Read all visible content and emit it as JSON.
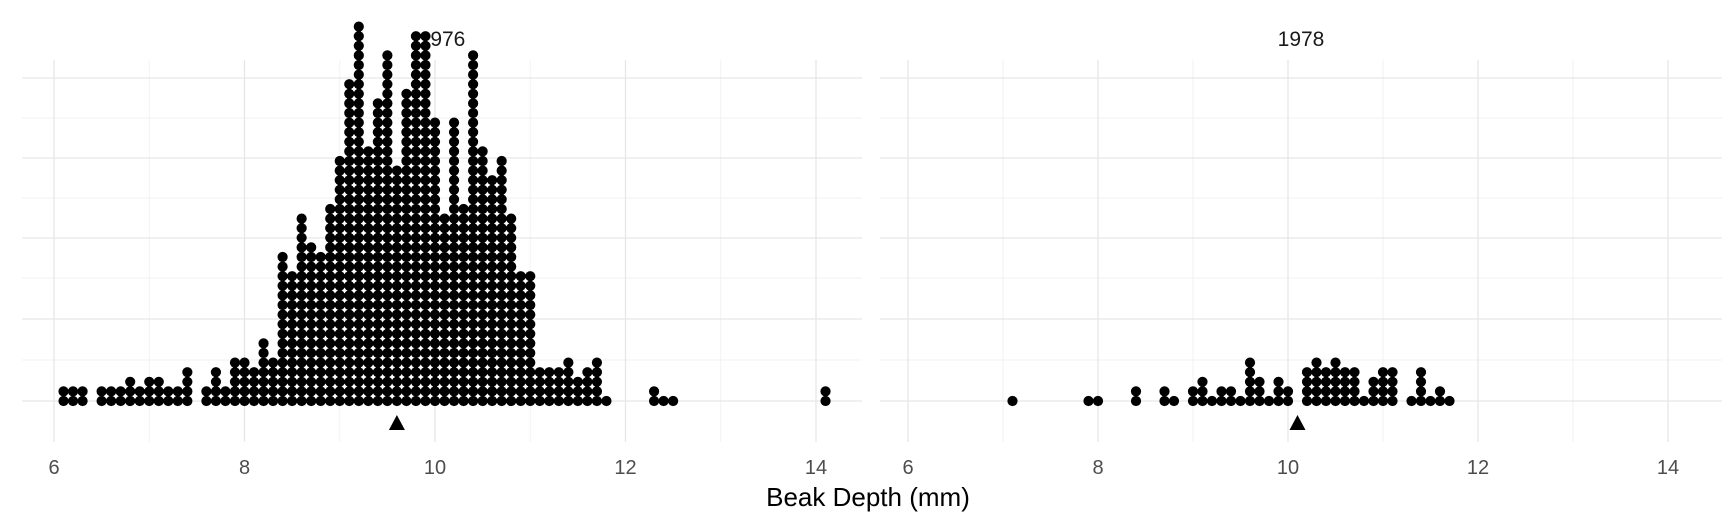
{
  "chart_data": {
    "type": "dotplot",
    "xlabel": "Beak Depth (mm)",
    "ylabel": "",
    "xlim": [
      5.7,
      14.5
    ],
    "x_ticks": [
      6,
      8,
      10,
      12,
      14
    ],
    "grid": true,
    "bin_width": 0.1,
    "dot_color": "#000000",
    "mean_marker": "triangle",
    "panels": [
      {
        "title": "1976",
        "mean": 9.6,
        "bins": [
          {
            "x": 6.1,
            "count": 2
          },
          {
            "x": 6.2,
            "count": 2
          },
          {
            "x": 6.3,
            "count": 2
          },
          {
            "x": 6.5,
            "count": 2
          },
          {
            "x": 6.6,
            "count": 2
          },
          {
            "x": 6.7,
            "count": 2
          },
          {
            "x": 6.8,
            "count": 3
          },
          {
            "x": 6.9,
            "count": 2
          },
          {
            "x": 7.0,
            "count": 3
          },
          {
            "x": 7.1,
            "count": 3
          },
          {
            "x": 7.2,
            "count": 2
          },
          {
            "x": 7.3,
            "count": 2
          },
          {
            "x": 7.4,
            "count": 4
          },
          {
            "x": 7.6,
            "count": 2
          },
          {
            "x": 7.7,
            "count": 4
          },
          {
            "x": 7.8,
            "count": 2
          },
          {
            "x": 7.9,
            "count": 5
          },
          {
            "x": 8.0,
            "count": 5
          },
          {
            "x": 8.1,
            "count": 4
          },
          {
            "x": 8.2,
            "count": 7
          },
          {
            "x": 8.3,
            "count": 5
          },
          {
            "x": 8.4,
            "count": 16
          },
          {
            "x": 8.5,
            "count": 14
          },
          {
            "x": 8.6,
            "count": 20
          },
          {
            "x": 8.7,
            "count": 17
          },
          {
            "x": 8.8,
            "count": 16
          },
          {
            "x": 8.9,
            "count": 21
          },
          {
            "x": 9.0,
            "count": 26
          },
          {
            "x": 9.1,
            "count": 34
          },
          {
            "x": 9.2,
            "count": 40
          },
          {
            "x": 9.3,
            "count": 27
          },
          {
            "x": 9.4,
            "count": 32
          },
          {
            "x": 9.5,
            "count": 37
          },
          {
            "x": 9.6,
            "count": 25
          },
          {
            "x": 9.7,
            "count": 33
          },
          {
            "x": 9.8,
            "count": 39
          },
          {
            "x": 9.9,
            "count": 39
          },
          {
            "x": 10.0,
            "count": 30
          },
          {
            "x": 10.1,
            "count": 20
          },
          {
            "x": 10.2,
            "count": 30
          },
          {
            "x": 10.3,
            "count": 21
          },
          {
            "x": 10.4,
            "count": 37
          },
          {
            "x": 10.5,
            "count": 27
          },
          {
            "x": 10.6,
            "count": 24
          },
          {
            "x": 10.7,
            "count": 26
          },
          {
            "x": 10.8,
            "count": 20
          },
          {
            "x": 10.9,
            "count": 14
          },
          {
            "x": 11.0,
            "count": 14
          },
          {
            "x": 11.1,
            "count": 4
          },
          {
            "x": 11.2,
            "count": 4
          },
          {
            "x": 11.3,
            "count": 4
          },
          {
            "x": 11.4,
            "count": 5
          },
          {
            "x": 11.5,
            "count": 3
          },
          {
            "x": 11.6,
            "count": 4
          },
          {
            "x": 11.7,
            "count": 5
          },
          {
            "x": 11.8,
            "count": 1
          },
          {
            "x": 12.3,
            "count": 2
          },
          {
            "x": 12.4,
            "count": 1
          },
          {
            "x": 12.5,
            "count": 1
          },
          {
            "x": 14.1,
            "count": 2
          }
        ]
      },
      {
        "title": "1978",
        "mean": 10.1,
        "bins": [
          {
            "x": 7.1,
            "count": 1
          },
          {
            "x": 7.9,
            "count": 1
          },
          {
            "x": 8.0,
            "count": 1
          },
          {
            "x": 8.4,
            "count": 2
          },
          {
            "x": 8.7,
            "count": 2
          },
          {
            "x": 8.8,
            "count": 1
          },
          {
            "x": 9.0,
            "count": 2
          },
          {
            "x": 9.1,
            "count": 3
          },
          {
            "x": 9.2,
            "count": 1
          },
          {
            "x": 9.3,
            "count": 2
          },
          {
            "x": 9.4,
            "count": 2
          },
          {
            "x": 9.5,
            "count": 1
          },
          {
            "x": 9.6,
            "count": 5
          },
          {
            "x": 9.7,
            "count": 3
          },
          {
            "x": 9.8,
            "count": 1
          },
          {
            "x": 9.9,
            "count": 3
          },
          {
            "x": 10.0,
            "count": 2
          },
          {
            "x": 10.2,
            "count": 4
          },
          {
            "x": 10.3,
            "count": 5
          },
          {
            "x": 10.4,
            "count": 4
          },
          {
            "x": 10.5,
            "count": 5
          },
          {
            "x": 10.6,
            "count": 4
          },
          {
            "x": 10.7,
            "count": 4
          },
          {
            "x": 10.8,
            "count": 1
          },
          {
            "x": 10.9,
            "count": 3
          },
          {
            "x": 11.0,
            "count": 4
          },
          {
            "x": 11.1,
            "count": 4
          },
          {
            "x": 11.3,
            "count": 1
          },
          {
            "x": 11.4,
            "count": 4
          },
          {
            "x": 11.5,
            "count": 1
          },
          {
            "x": 11.6,
            "count": 2
          },
          {
            "x": 11.7,
            "count": 1
          }
        ]
      }
    ]
  }
}
